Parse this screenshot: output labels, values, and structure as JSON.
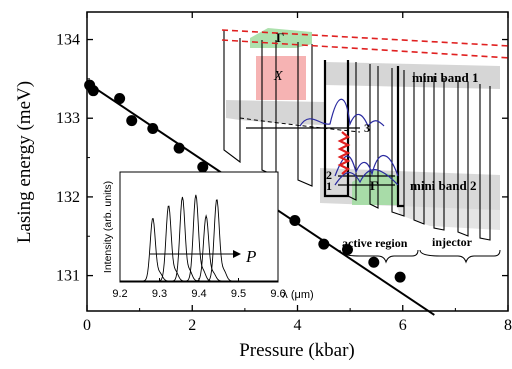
{
  "chart_data": [
    {
      "type": "scatter",
      "xlabel": "Pressure (kbar)",
      "ylabel": "Lasing energy (meV)",
      "xlim": [
        0,
        8
      ],
      "ylim": [
        130.55,
        134.35
      ],
      "x_ticks": [
        0,
        2,
        4,
        6,
        8
      ],
      "y_ticks": [
        131,
        132,
        133,
        134
      ],
      "x_tick_labels": [
        "0",
        "2",
        "4",
        "6",
        "8"
      ],
      "y_tick_labels": [
        "131",
        "132",
        "133",
        "134"
      ],
      "grid": false,
      "series": [
        {
          "points": [
            [
              0.05,
              133.42
            ],
            [
              0.12,
              133.35
            ],
            [
              0.62,
              133.25
            ],
            [
              0.85,
              132.97
            ],
            [
              1.25,
              132.87
            ],
            [
              1.75,
              132.62
            ],
            [
              2.2,
              132.38
            ],
            [
              2.7,
              132.22
            ],
            [
              3.0,
              132.03
            ],
            [
              3.4,
              131.93
            ],
            [
              3.95,
              131.7
            ],
            [
              4.5,
              131.4
            ],
            [
              4.95,
              131.33
            ],
            [
              5.45,
              131.17
            ],
            [
              5.95,
              130.98
            ]
          ]
        }
      ],
      "fit_line": {
        "x": [
          0,
          6.6
        ],
        "y": [
          133.45,
          130.5
        ]
      }
    },
    {
      "type": "line",
      "inset": true,
      "xlabel": "λ (μm)",
      "ylabel": "Intensity (arb. units)",
      "xlim": [
        9.2,
        9.6
      ],
      "ylim": [
        0,
        1.05
      ],
      "x_ticks": [
        9.2,
        9.3,
        9.4,
        9.5,
        9.6
      ],
      "x_tick_labels": [
        "9.2",
        "9.3",
        "9.4",
        "9.5",
        "9.6"
      ],
      "annotation": "P",
      "series": [
        {
          "center": 9.283,
          "height": 0.6
        },
        {
          "center": 9.323,
          "height": 0.72
        },
        {
          "center": 9.358,
          "height": 0.8
        },
        {
          "center": 9.392,
          "height": 0.82
        },
        {
          "center": 9.418,
          "height": 0.62
        },
        {
          "center": 9.445,
          "height": 0.78
        }
      ]
    }
  ],
  "diagram": {
    "labels": {
      "gamma_top": "Γ",
      "x_valley": "X",
      "gamma_bottom": "Γ",
      "mini_band_1": "mini band 1",
      "mini_band_2": "mini band 2",
      "level_1": "1",
      "level_2": "2",
      "level_3": "3",
      "active_region": "active region",
      "injector": "injector"
    },
    "colors": {
      "x_valley": "#f4a6a6",
      "gamma_valley": "#9fdc9f",
      "mini_band": "#c8c8c8",
      "dashed_edge": "#e02020",
      "wavefunction": "#2a2aa0",
      "transition": "#e02020"
    }
  }
}
